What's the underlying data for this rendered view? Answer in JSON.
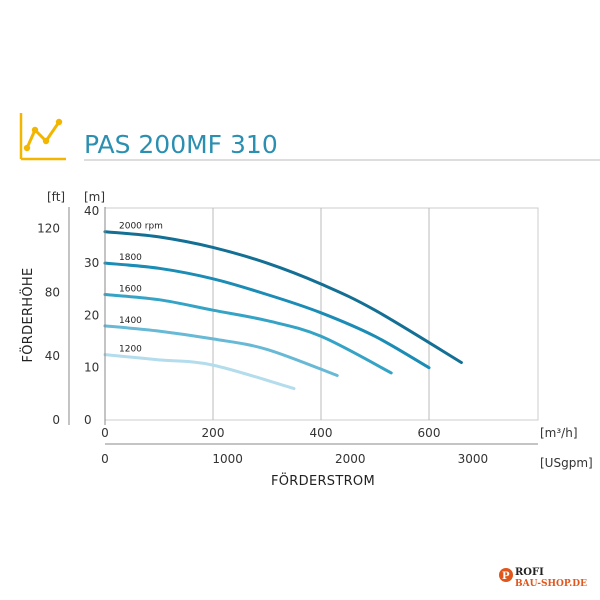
{
  "header": {
    "title": "PAS 200MF 310",
    "icon": "performance-curve-icon",
    "icon_color": "#f2b600",
    "title_color": "#2b8fb2"
  },
  "chart_data": {
    "type": "line",
    "title": "PAS 200MF 310",
    "xlabel": "FÖRDERSTROM",
    "ylabel": "FÖRDERHÖHE",
    "x_unit": "[m³/h]",
    "x2_unit": "[USgpm]",
    "y_unit": "[m]",
    "y2_unit": "[ft]",
    "xlim": [
      0,
      800
    ],
    "ylim": [
      0,
      48
    ],
    "x_ticks": [
      0,
      200,
      400,
      600
    ],
    "x_tick_labels": [
      "0",
      "200",
      "400",
      "600"
    ],
    "x2_ticks": [
      0,
      1000,
      2000,
      3000
    ],
    "x2_tick_labels": [
      "0",
      "1000",
      "2000",
      "3000"
    ],
    "y_ticks": [
      0,
      10,
      20,
      30,
      40
    ],
    "y_tick_labels": [
      "0",
      "10",
      "20",
      "30",
      "40"
    ],
    "y2_ticks": [
      0,
      40,
      80,
      120
    ],
    "y2_tick_labels": [
      "0",
      "40",
      "80",
      "120"
    ],
    "grid": true,
    "series": [
      {
        "name": "2000 rpm",
        "color": "#136f94",
        "x": [
          0,
          100,
          200,
          300,
          400,
          500,
          660
        ],
        "y": [
          36,
          35,
          33,
          30,
          26,
          21,
          11
        ]
      },
      {
        "name": "1800",
        "color": "#1a8cb5",
        "x": [
          0,
          100,
          200,
          300,
          400,
          500,
          600
        ],
        "y": [
          30,
          29,
          27,
          24,
          20.5,
          16,
          10
        ]
      },
      {
        "name": "1600",
        "color": "#35a3c5",
        "x": [
          0,
          100,
          200,
          300,
          400,
          530
        ],
        "y": [
          24,
          23,
          21,
          19,
          16,
          9
        ]
      },
      {
        "name": "1400",
        "color": "#68b9d6",
        "x": [
          0,
          100,
          200,
          300,
          430
        ],
        "y": [
          18,
          17,
          15.5,
          13.5,
          8.5
        ]
      },
      {
        "name": "1200",
        "color": "#b3dcec",
        "x": [
          0,
          100,
          200,
          350
        ],
        "y": [
          12.5,
          11.5,
          10.5,
          6
        ]
      }
    ]
  },
  "watermark": {
    "line1": "ROFI",
    "line2": "BAU-SHOP.DE"
  }
}
